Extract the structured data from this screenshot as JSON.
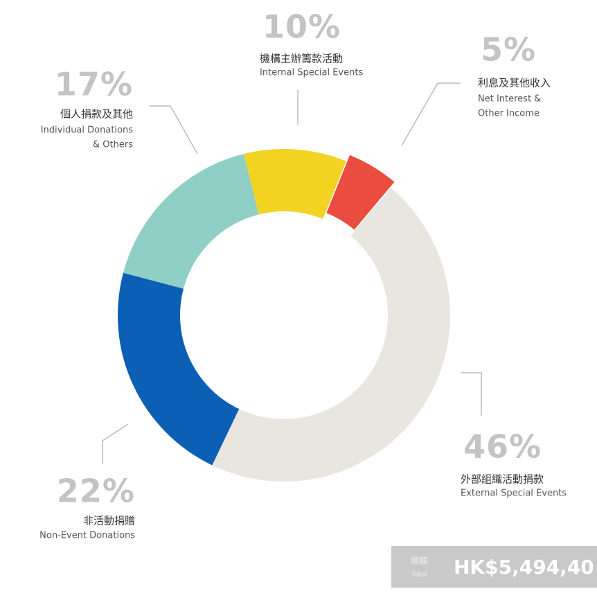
{
  "chart_data": {
    "type": "pie",
    "values": [
      10,
      5,
      46,
      22,
      17
    ],
    "value_labels": [
      "10%",
      "5%",
      "46%",
      "22%",
      "17%"
    ],
    "colors": [
      "#f2d322",
      "#ea4c3f",
      "#e9e6e0",
      "#0b5fb5",
      "#8fcfc6"
    ],
    "labels": [
      {
        "zh": "機構主辦籌款活動",
        "en": [
          "Internal Special Events"
        ]
      },
      {
        "zh": "利息及其他收入",
        "en": [
          "Net Interest &",
          "Other Income"
        ]
      },
      {
        "zh": "外部組織活動捐款",
        "en": [
          "External Special Events"
        ]
      },
      {
        "zh": "非活動捐贈",
        "en": [
          "Non-Event Donations"
        ]
      },
      {
        "zh": "個人捐款及其他",
        "en": [
          "Individual Donations",
          "& Others"
        ]
      }
    ],
    "total": {
      "label_zh": "總額",
      "label_en": "Total",
      "value": "HK$5,494,40"
    }
  }
}
